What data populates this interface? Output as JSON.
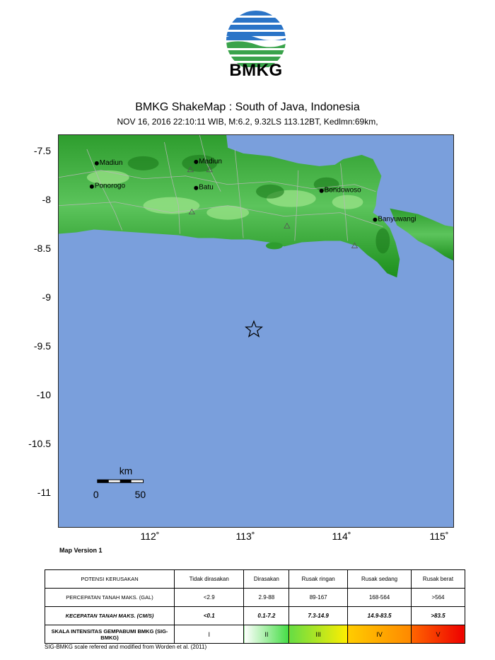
{
  "header": {
    "logo_text": "BMKG",
    "title": "BMKG ShakeMap : South of Java, Indonesia",
    "subtitle": "NOV 16, 2016 22:10:11 WIB, M:6.2, 9.32LS 113.12BT, Kedlmn:69km,"
  },
  "map": {
    "lat_labels": [
      "-7.5",
      "-8",
      "-8.5",
      "-9",
      "-9.5",
      "-10",
      "-10.5",
      "-11"
    ],
    "lon_labels": [
      "112˚",
      "113˚",
      "114˚",
      "115˚"
    ],
    "cities": [
      "Madiun",
      "Madiun",
      "Ponorogo",
      "Batu",
      "Bondowoso",
      "Banyuwangi"
    ],
    "epicenter_symbol": "star",
    "scale_unit": "km",
    "scale_values": [
      "0",
      "50"
    ],
    "version_label": "Map Version 1",
    "colors": {
      "sea": "#7a9fdc",
      "land_high": "#1c8f1c",
      "land_low": "#8fdc7e",
      "grid_border": "#222222"
    }
  },
  "legend": {
    "rows": [
      {
        "header": "POTENSI KERUSAKAN",
        "cells": [
          "Tidak dirasakan",
          "Dirasakan",
          "Rusak ringan",
          "Rusak sedang",
          "Rusak berat"
        ]
      },
      {
        "header": "PERCEPATAN TANAH MAKS. (gal)",
        "cells": [
          "<2.9",
          "2.9-88",
          "89-167",
          "168-564",
          ">564"
        ]
      },
      {
        "header": "KECEPATAN TANAH MAKS. (cm/s)",
        "cells": [
          "<0.1",
          "0.1-7.2",
          "7.3-14.9",
          "14.9-83.5",
          ">83.5"
        ]
      },
      {
        "header": "SKALA INTENSITAS GEMPABUMI BMKG (SIG-BMKG)",
        "cells": [
          "I",
          "II",
          "III",
          "IV",
          "V"
        ]
      }
    ],
    "intensity_colors": [
      "#ffffff",
      "#00dd00",
      "#ffee00",
      "#ff8800",
      "#ee0000"
    ],
    "footnote": "SIG-BMKG scale refered and modified from Worden et al. (2011)"
  }
}
